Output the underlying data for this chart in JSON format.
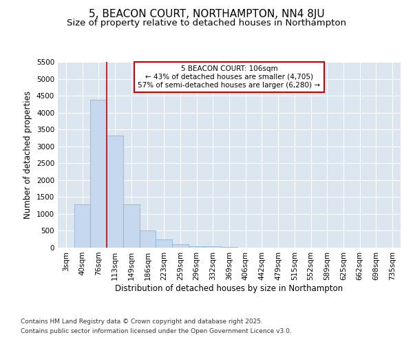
{
  "title1": "5, BEACON COURT, NORTHAMPTON, NN4 8JU",
  "title2": "Size of property relative to detached houses in Northampton",
  "xlabel": "Distribution of detached houses by size in Northampton",
  "ylabel": "Number of detached properties",
  "categories": [
    "3sqm",
    "40sqm",
    "76sqm",
    "113sqm",
    "149sqm",
    "186sqm",
    "223sqm",
    "259sqm",
    "296sqm",
    "332sqm",
    "369sqm",
    "406sqm",
    "442sqm",
    "479sqm",
    "515sqm",
    "552sqm",
    "589sqm",
    "625sqm",
    "662sqm",
    "698sqm",
    "735sqm"
  ],
  "values": [
    0,
    1275,
    4375,
    3325,
    1275,
    500,
    235,
    100,
    50,
    50,
    20,
    0,
    0,
    0,
    0,
    0,
    0,
    0,
    0,
    0,
    0
  ],
  "bar_color": "#c5d8ed",
  "bar_edge_color": "#7aafd4",
  "vline_color": "#cc0000",
  "vline_pos": 2.5,
  "annotation_line1": "5 BEACON COURT: 106sqm",
  "annotation_line2": "← 43% of detached houses are smaller (4,705)",
  "annotation_line3": "57% of semi-detached houses are larger (6,280) →",
  "annotation_box_color": "#ffffff",
  "annotation_box_edge_color": "#cc0000",
  "ylim": [
    0,
    5500
  ],
  "yticks": [
    0,
    500,
    1000,
    1500,
    2000,
    2500,
    3000,
    3500,
    4000,
    4500,
    5000,
    5500
  ],
  "footnote1": "Contains HM Land Registry data © Crown copyright and database right 2025.",
  "footnote2": "Contains public sector information licensed under the Open Government Licence v3.0.",
  "bg_color": "#ffffff",
  "plot_bg_color": "#dce6f0",
  "grid_color": "#ffffff",
  "title_fontsize": 11,
  "subtitle_fontsize": 9.5,
  "axis_label_fontsize": 8.5,
  "tick_fontsize": 7.5,
  "footnote_fontsize": 6.5
}
